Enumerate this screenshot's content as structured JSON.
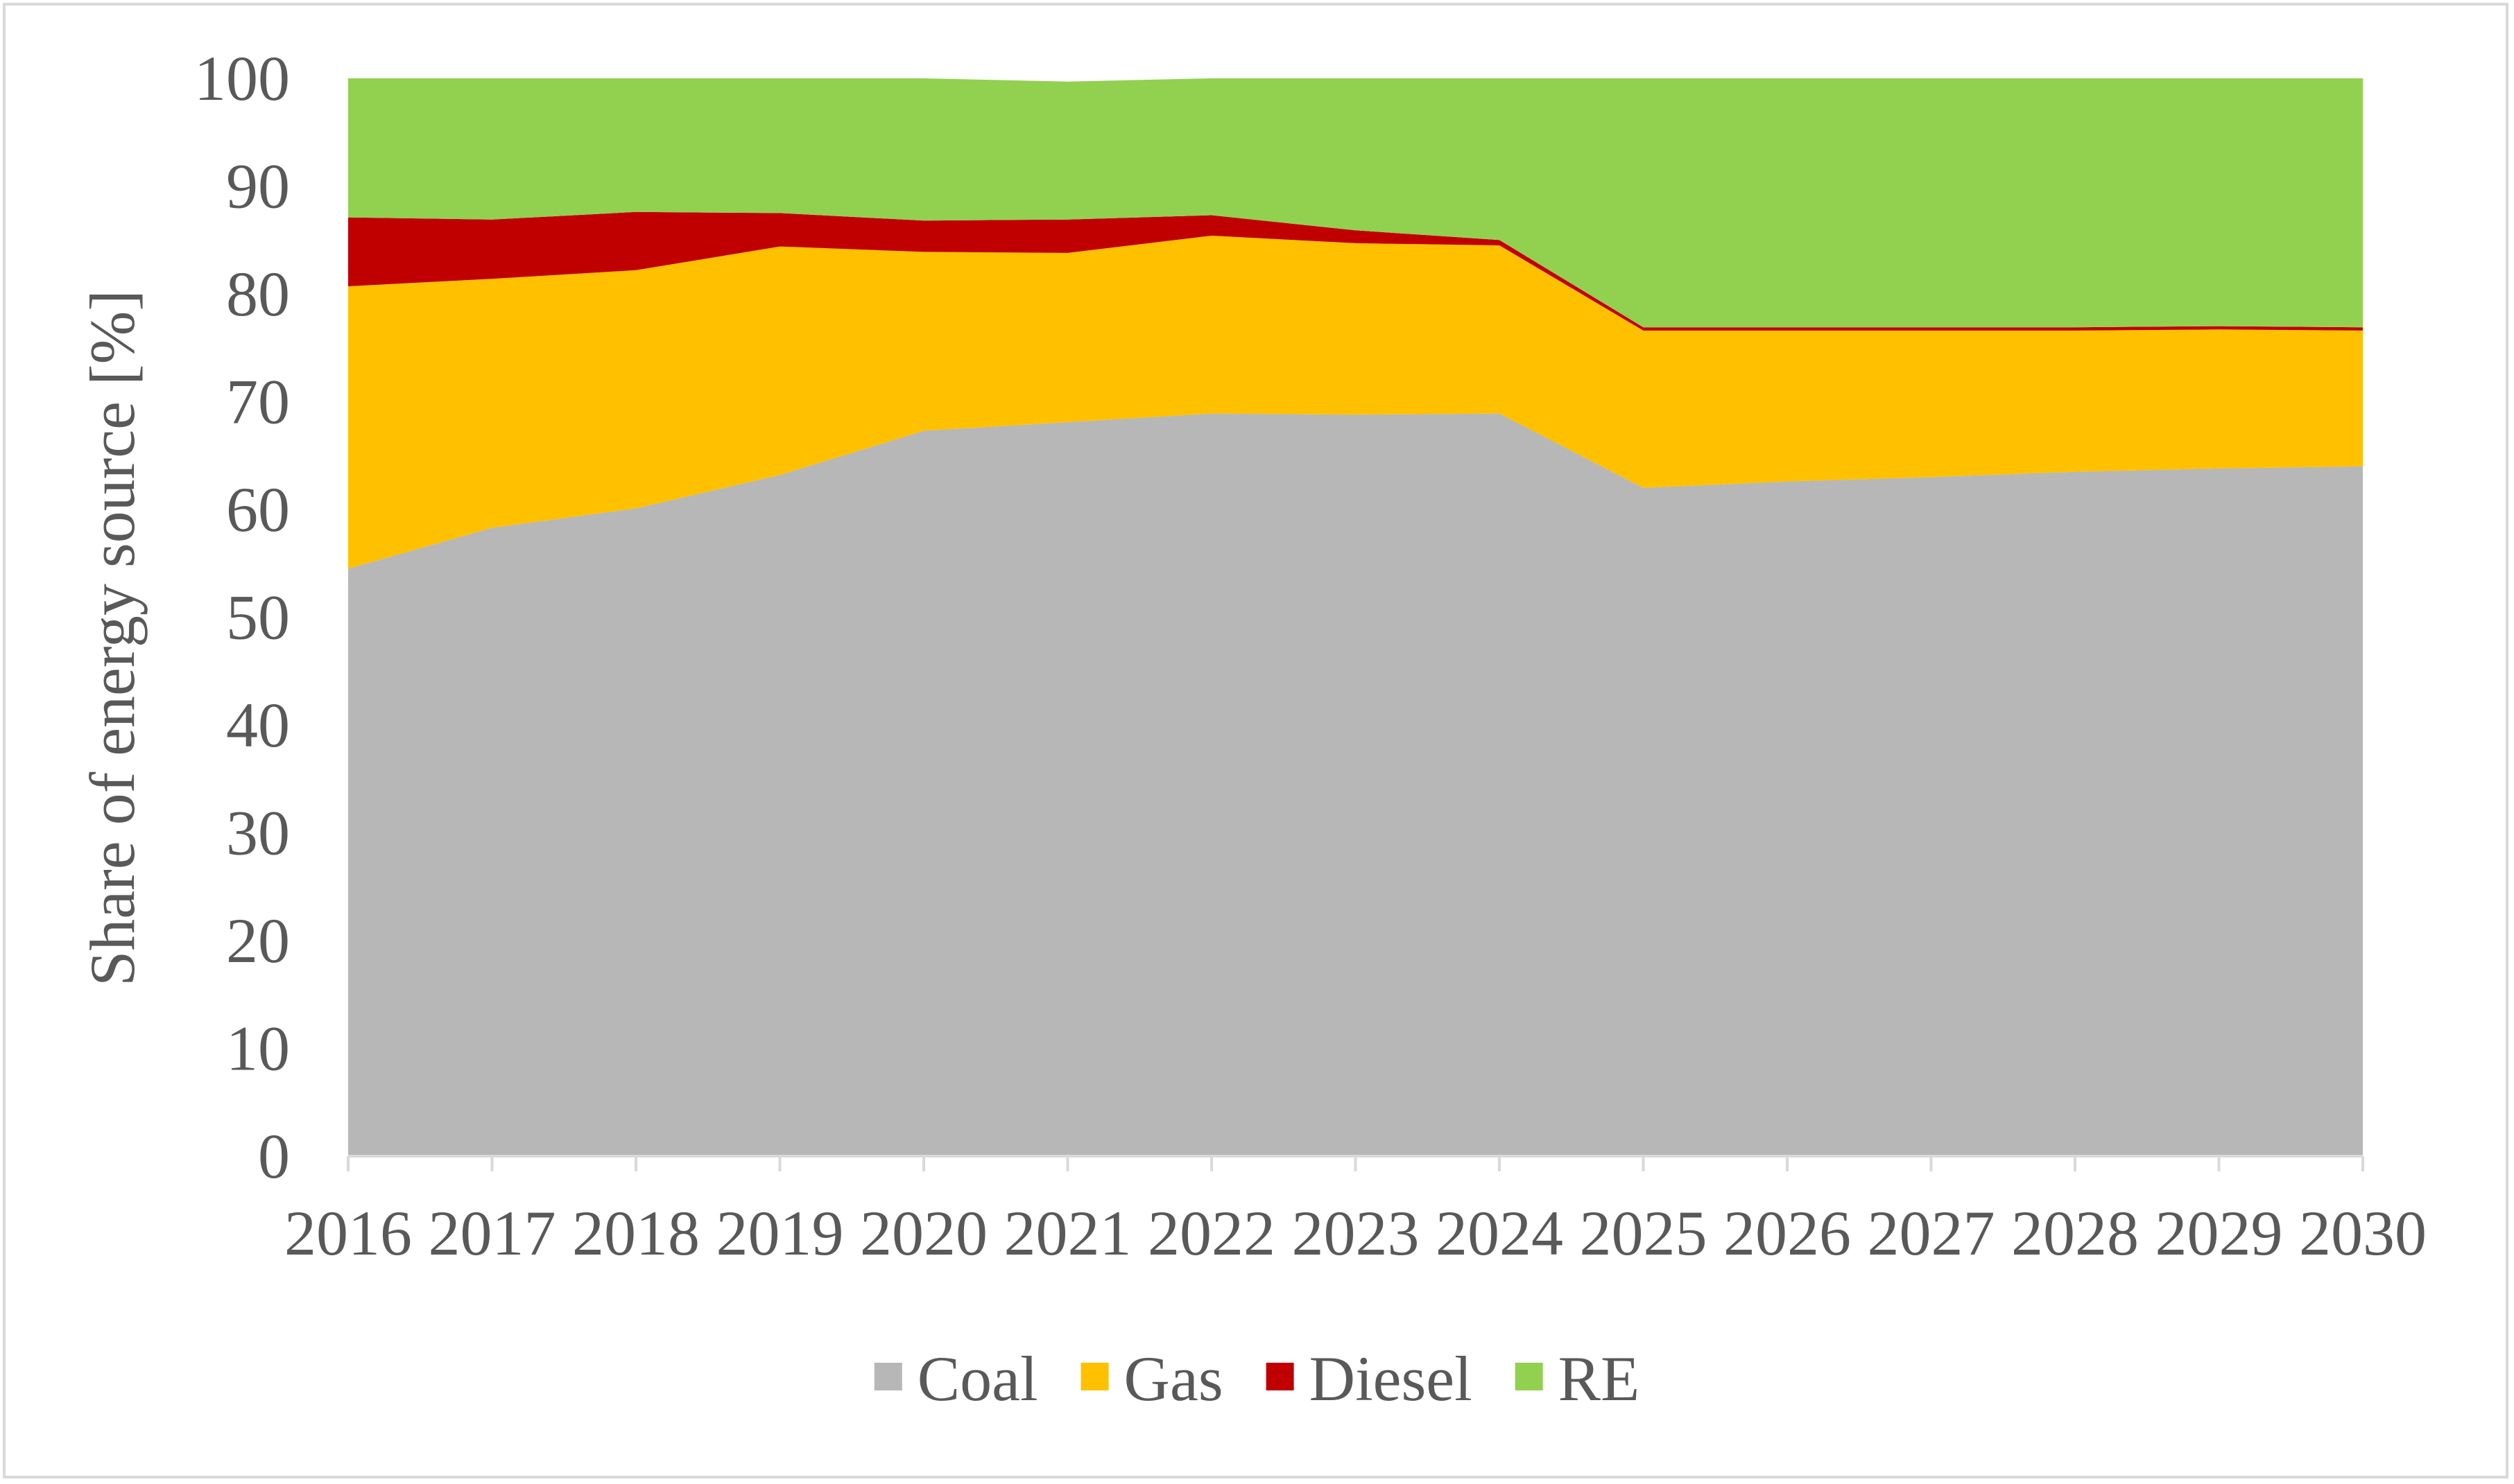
{
  "chart_data": {
    "type": "area",
    "stacked": true,
    "title": "",
    "xlabel": "",
    "ylabel": "Share of energy source [%]",
    "ylim": [
      0,
      100
    ],
    "y_ticks": [
      0,
      10,
      20,
      30,
      40,
      50,
      60,
      70,
      80,
      90,
      100
    ],
    "grid": false,
    "legend_position": "bottom",
    "x": [
      2016,
      2017,
      2018,
      2019,
      2020,
      2021,
      2022,
      2023,
      2024,
      2025,
      2026,
      2027,
      2028,
      2029,
      2030
    ],
    "series": [
      {
        "name": "Coal",
        "color": "#b7b7b7",
        "values": [
          54.5,
          58.3,
          60.1,
          63.2,
          67.3,
          68.1,
          68.9,
          68.8,
          68.9,
          62.0,
          62.6,
          63.0,
          63.5,
          63.8,
          64.0
        ]
      },
      {
        "name": "Gas",
        "color": "#ffc000",
        "values": [
          26.2,
          23.1,
          22.1,
          21.2,
          16.6,
          15.7,
          16.5,
          15.9,
          15.6,
          14.6,
          14.0,
          13.6,
          13.1,
          12.9,
          12.6
        ]
      },
      {
        "name": "Diesel",
        "color": "#c00000",
        "values": [
          6.4,
          5.5,
          5.4,
          3.1,
          2.9,
          3.1,
          1.9,
          1.2,
          0.5,
          0.3,
          0.3,
          0.3,
          0.3,
          0.3,
          0.3
        ]
      },
      {
        "name": "RE",
        "color": "#92d050",
        "values": [
          12.9,
          13.1,
          12.4,
          12.5,
          13.2,
          12.8,
          12.7,
          14.1,
          15.0,
          23.1,
          23.1,
          23.1,
          23.1,
          23.0,
          23.1
        ]
      }
    ]
  }
}
